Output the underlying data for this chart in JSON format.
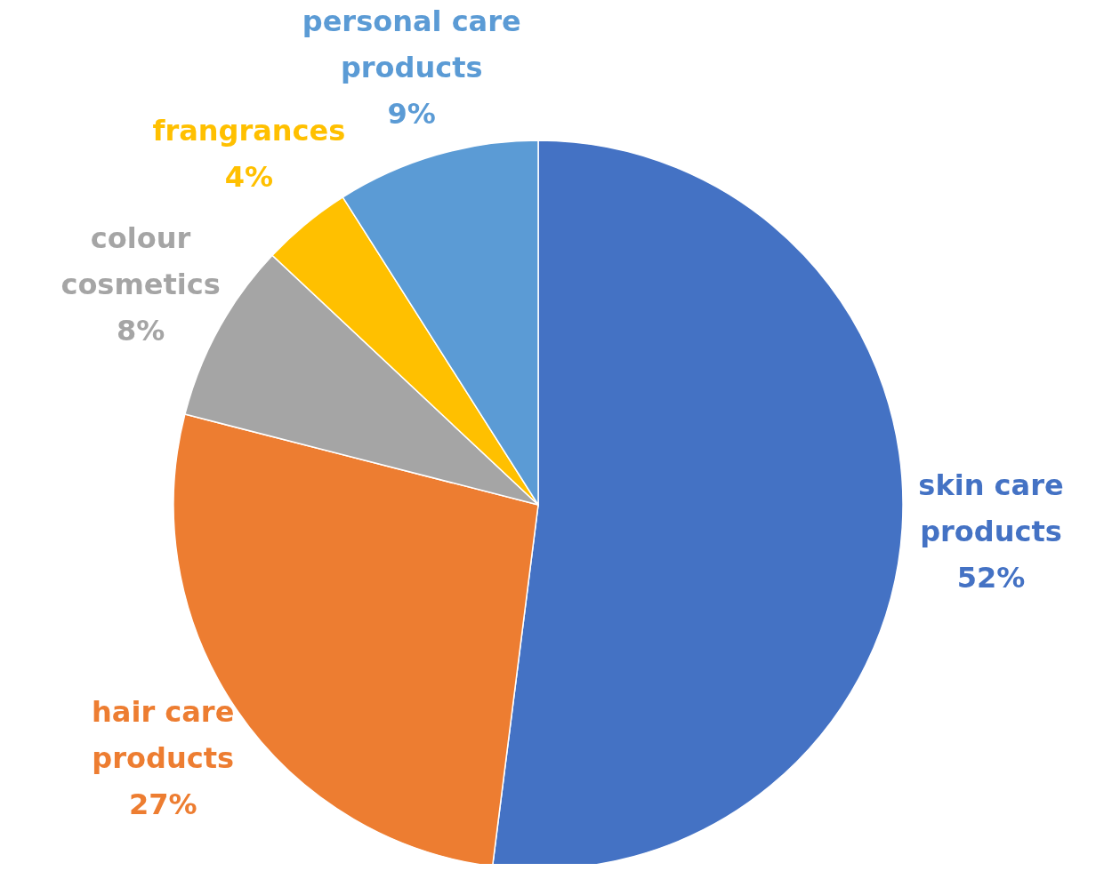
{
  "chart_data": {
    "type": "pie",
    "categories": [
      "skin care products",
      "hair care products",
      "colour cosmetics",
      "frangrances",
      "personal care products"
    ],
    "values": [
      52,
      27,
      8,
      4,
      9
    ],
    "value_labels": [
      "52%",
      "27%",
      "8%",
      "4%",
      "9%"
    ],
    "colors": [
      "#4472c4",
      "#ed7d31",
      "#a5a5a5",
      "#ffc000",
      "#5b9bd5"
    ]
  }
}
